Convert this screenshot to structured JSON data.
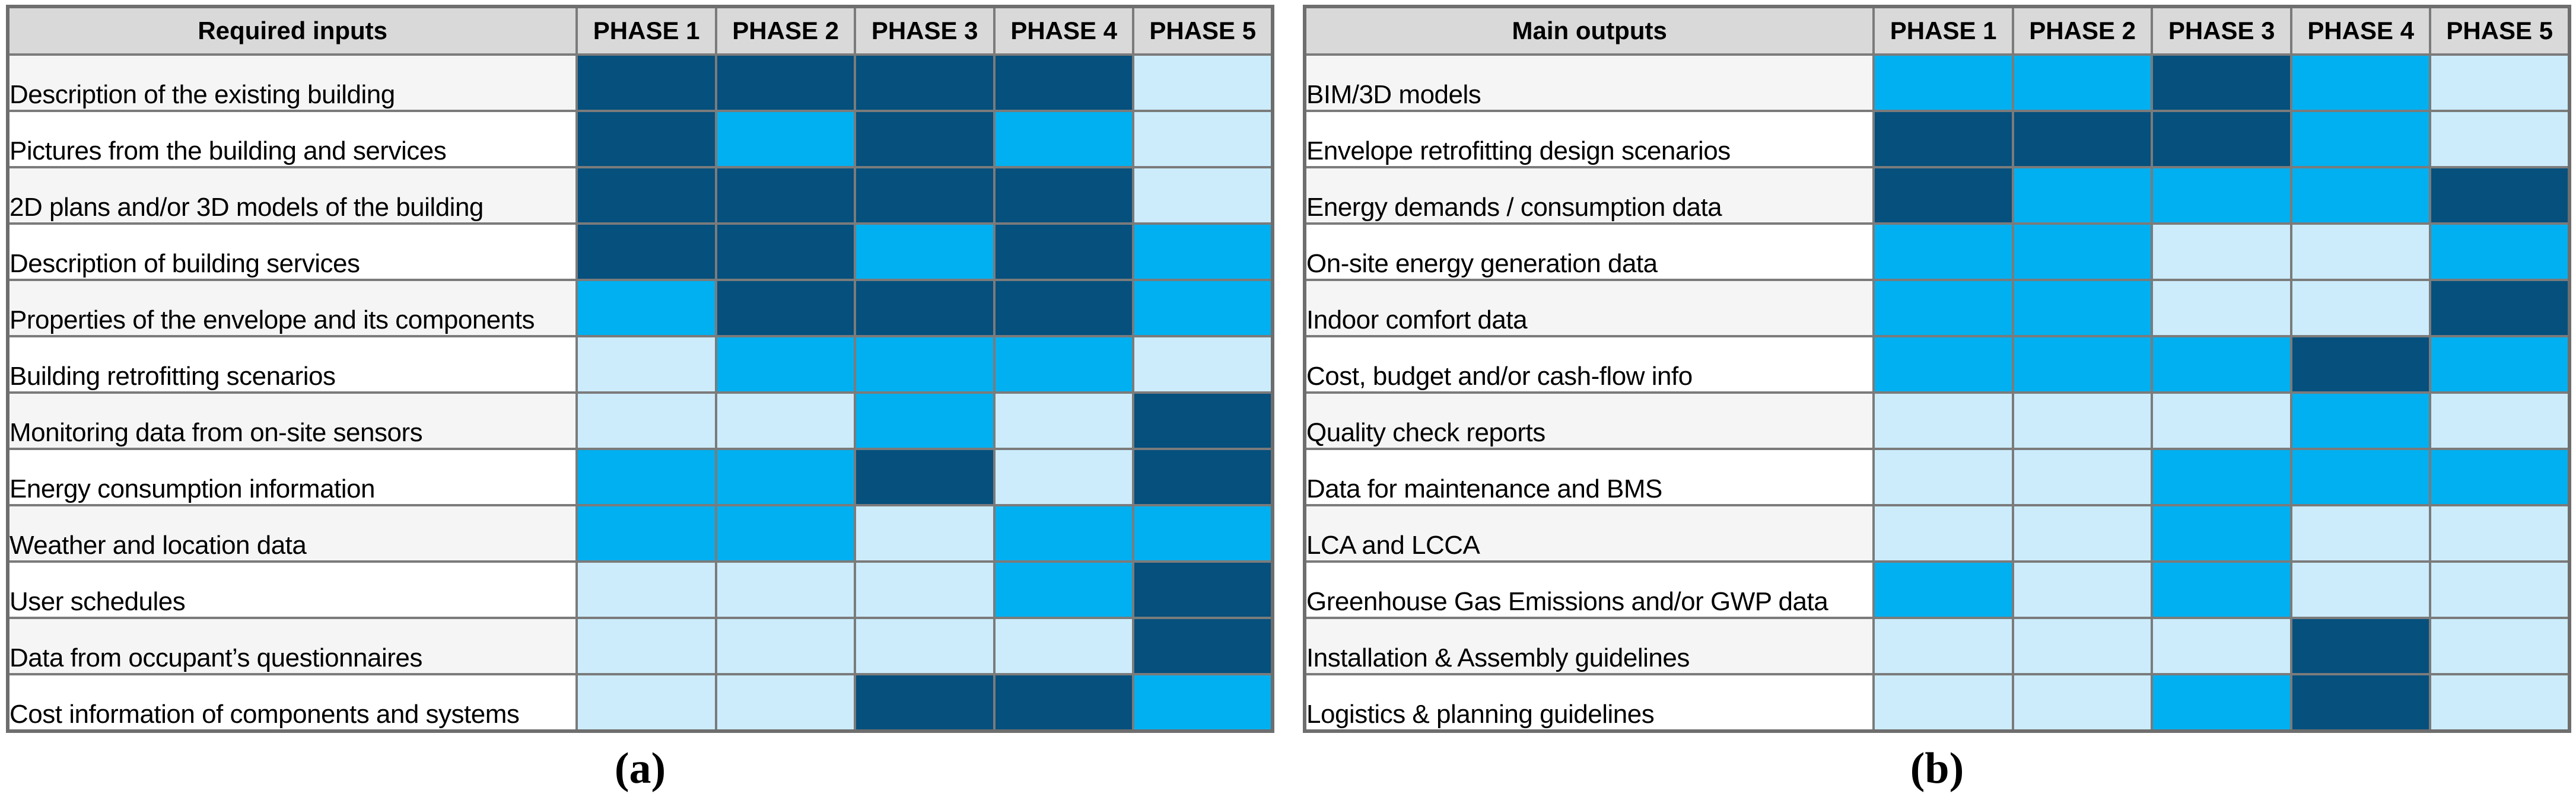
{
  "colors": {
    "dark": "#05507D",
    "med": "#00B0F0",
    "light": "#CCECFC",
    "header_bg": "#D9D9D9",
    "row_bg": "#FFFFFF",
    "row_alt_bg": "#F5F5F5",
    "grid": "#7B7B7B",
    "outer_border": "#6E6E6E",
    "text": "#000000"
  },
  "chart_data": [
    {
      "type": "heatmap",
      "panel_caption": "(a)",
      "header_label": "Required inputs",
      "columns": [
        "PHASE 1",
        "PHASE 2",
        "PHASE 3",
        "PHASE 4",
        "PHASE 5"
      ],
      "rows": [
        "Description of the existing building",
        "Pictures from the building and services",
        "2D plans and/or 3D models of the building",
        "Description of building services",
        "Properties of the envelope and its components",
        "Building retrofitting scenarios",
        "Monitoring data from on-site sensors",
        "Energy consumption information",
        "Weather and location data",
        "User schedules",
        "Data from occupant’s questionnaires",
        "Cost information of components and systems"
      ],
      "values": [
        [
          "dark",
          "dark",
          "dark",
          "dark",
          "light"
        ],
        [
          "dark",
          "med",
          "dark",
          "med",
          "light"
        ],
        [
          "dark",
          "dark",
          "dark",
          "dark",
          "light"
        ],
        [
          "dark",
          "dark",
          "med",
          "dark",
          "med"
        ],
        [
          "med",
          "dark",
          "dark",
          "dark",
          "med"
        ],
        [
          "light",
          "med",
          "med",
          "med",
          "light"
        ],
        [
          "light",
          "light",
          "med",
          "light",
          "dark"
        ],
        [
          "med",
          "med",
          "dark",
          "light",
          "dark"
        ],
        [
          "med",
          "med",
          "light",
          "med",
          "med"
        ],
        [
          "light",
          "light",
          "light",
          "med",
          "dark"
        ],
        [
          "light",
          "light",
          "light",
          "light",
          "dark"
        ],
        [
          "light",
          "light",
          "dark",
          "dark",
          "med"
        ]
      ]
    },
    {
      "type": "heatmap",
      "panel_caption": "(b)",
      "header_label": "Main outputs",
      "columns": [
        "PHASE 1",
        "PHASE 2",
        "PHASE 3",
        "PHASE 4",
        "PHASE 5"
      ],
      "rows": [
        "BIM/3D models",
        "Envelope retrofitting design scenarios",
        "Energy demands / consumption data",
        "On-site energy generation data",
        "Indoor comfort data",
        "Cost, budget and/or cash-flow info",
        "Quality check reports",
        "Data for maintenance and BMS",
        "LCA and LCCA",
        "Greenhouse Gas Emissions and/or GWP data",
        "Installation & Assembly guidelines",
        "Logistics & planning guidelines"
      ],
      "values": [
        [
          "med",
          "med",
          "dark",
          "med",
          "light"
        ],
        [
          "dark",
          "dark",
          "dark",
          "med",
          "light"
        ],
        [
          "dark",
          "med",
          "med",
          "med",
          "dark"
        ],
        [
          "med",
          "med",
          "light",
          "light",
          "med"
        ],
        [
          "med",
          "med",
          "light",
          "light",
          "dark"
        ],
        [
          "med",
          "med",
          "med",
          "dark",
          "med"
        ],
        [
          "light",
          "light",
          "light",
          "med",
          "light"
        ],
        [
          "light",
          "light",
          "med",
          "med",
          "med"
        ],
        [
          "light",
          "light",
          "med",
          "light",
          "light"
        ],
        [
          "med",
          "light",
          "med",
          "light",
          "light"
        ],
        [
          "light",
          "light",
          "light",
          "dark",
          "light"
        ],
        [
          "light",
          "light",
          "med",
          "dark",
          "light"
        ]
      ]
    }
  ]
}
